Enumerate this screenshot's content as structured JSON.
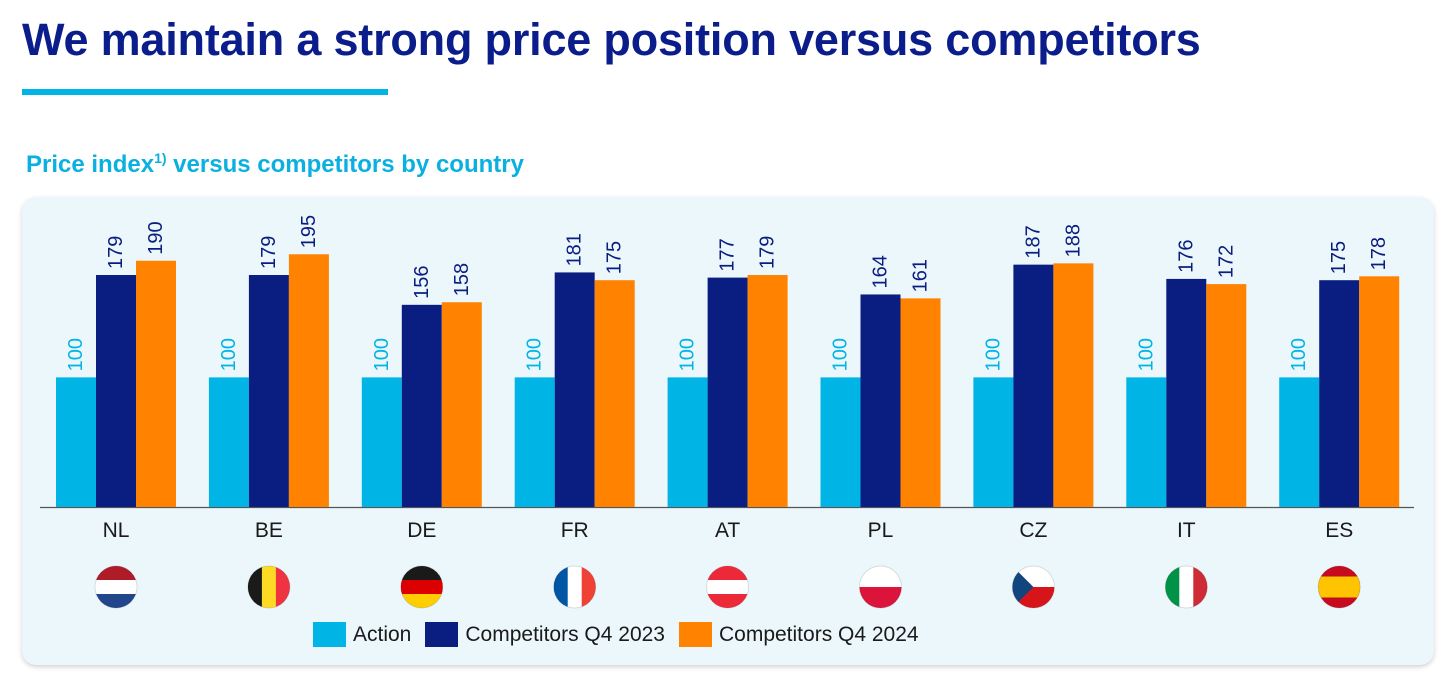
{
  "page": {
    "title": "We maintain a strong price position versus competitors",
    "subtitle": "Price index",
    "subtitle_sup": "1)",
    "subtitle_rest": " versus competitors by country"
  },
  "colors": {
    "action": "#00b4e6",
    "competitors_2023": "#0a1d80",
    "competitors_2024": "#ff8200",
    "title": "#0a1d8a",
    "accent": "#00b4e6"
  },
  "chart_data": {
    "type": "bar",
    "title": "Price index 1) versus competitors by country",
    "xlabel": "",
    "ylabel": "",
    "ylim": [
      0,
      200
    ],
    "grid": false,
    "legend_position": "bottom",
    "categories": [
      "NL",
      "BE",
      "DE",
      "FR",
      "AT",
      "PL",
      "CZ",
      "IT",
      "ES"
    ],
    "flags": [
      "flag-nl-icon",
      "flag-be-icon",
      "flag-de-icon",
      "flag-fr-icon",
      "flag-at-icon",
      "flag-pl-icon",
      "flag-cz-icon",
      "flag-it-icon",
      "flag-es-icon"
    ],
    "series": [
      {
        "name": "Action",
        "values": [
          100,
          100,
          100,
          100,
          100,
          100,
          100,
          100,
          100
        ]
      },
      {
        "name": "Competitors Q4 2023",
        "values": [
          179,
          179,
          156,
          181,
          177,
          164,
          187,
          176,
          175
        ]
      },
      {
        "name": "Competitors Q4 2024",
        "values": [
          190,
          195,
          158,
          175,
          179,
          161,
          188,
          172,
          178
        ]
      }
    ]
  }
}
